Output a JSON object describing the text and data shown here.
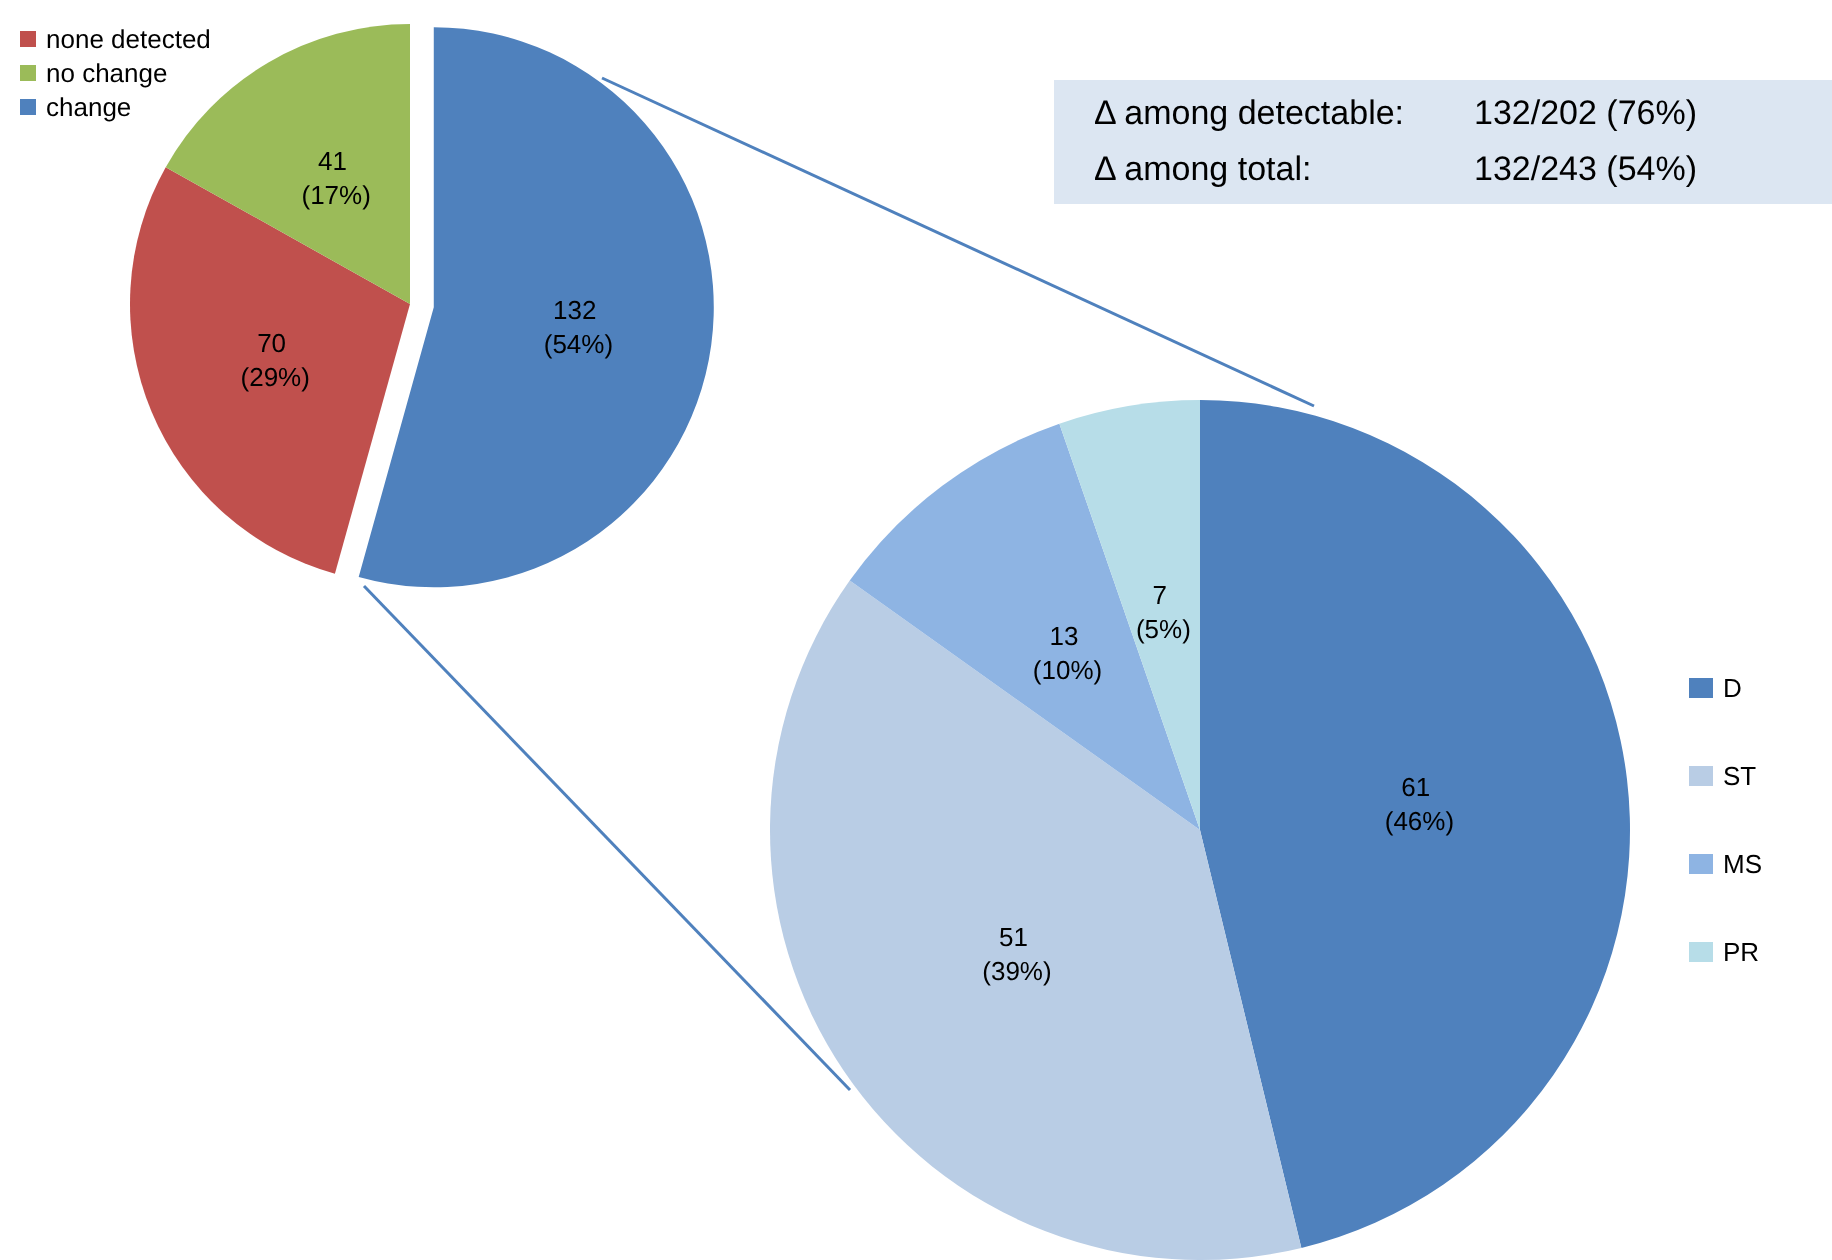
{
  "chart_data": [
    {
      "type": "pie",
      "categories": [
        "none detected",
        "no change",
        "change"
      ],
      "values": [
        70,
        41,
        132
      ],
      "colors": [
        "#c0504d",
        "#9bbb59",
        "#4f81bd"
      ],
      "value_labels": [
        "70 (29%)",
        "41 (17%)",
        "132 (54%)"
      ],
      "legend": "top left"
    },
    {
      "type": "other",
      "annotations": [
        "Δ among detectable:",
        "132/202 (76%)",
        "Δ among total:",
        "132/243 (54%)"
      ]
    },
    {
      "type": "pie",
      "categories": [
        "D",
        "ST",
        "MS",
        "PR"
      ],
      "values": [
        61,
        51,
        13,
        7
      ],
      "colors": [
        "#4f81bd",
        "#b9cde5",
        "#8eb4e3",
        "#b7dde8"
      ],
      "value_labels": [
        "61 (46%)",
        "51 (39%)",
        "13 (10%)",
        "7 (5%)"
      ],
      "legend": "right"
    }
  ]
}
